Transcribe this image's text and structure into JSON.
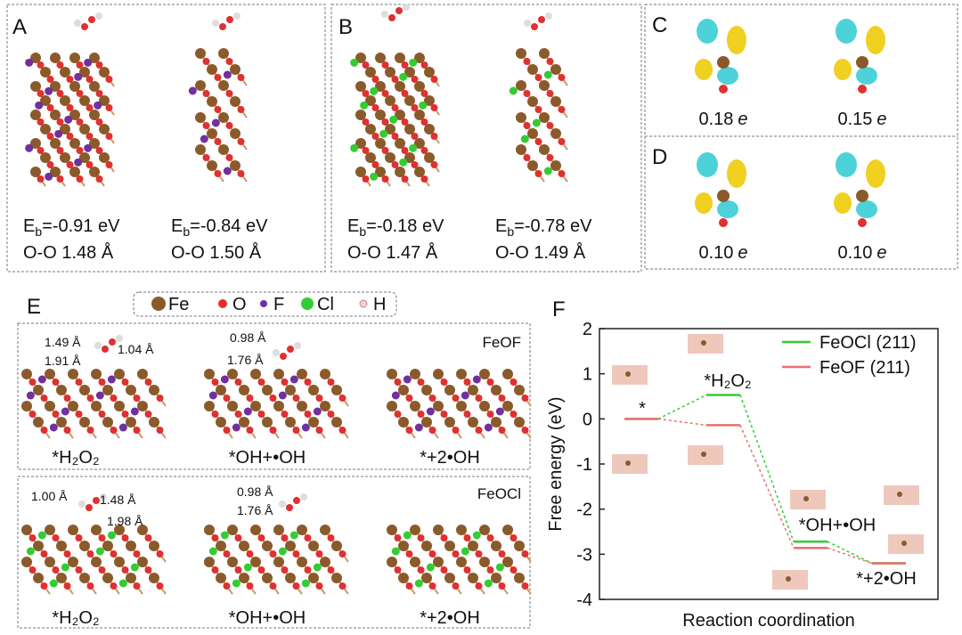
{
  "panels": {
    "A": {
      "label": "A",
      "structures": [
        {
          "energy_symbol": "E",
          "energy_subscript": "b",
          "energy_value": "=-0.91 eV",
          "bond": "O-O 1.48 Å"
        },
        {
          "energy_symbol": "E",
          "energy_subscript": "b",
          "energy_value": "=-0.84 eV",
          "bond": "O-O 1.50 Å"
        }
      ]
    },
    "B": {
      "label": "B",
      "structures": [
        {
          "energy_symbol": "E",
          "energy_subscript": "b",
          "energy_value": "=-0.18 eV",
          "bond": "O-O 1.47 Å"
        },
        {
          "energy_symbol": "E",
          "energy_subscript": "b",
          "energy_value": "=-0.78 eV",
          "bond": "O-O 1.49 Å"
        }
      ]
    },
    "C": {
      "label": "C",
      "charges": [
        {
          "value": "0.18",
          "unit": "e"
        },
        {
          "value": "0.15",
          "unit": "e"
        }
      ]
    },
    "D": {
      "label": "D",
      "charges": [
        {
          "value": "0.10",
          "unit": "e"
        },
        {
          "value": "0.10",
          "unit": "e"
        }
      ]
    },
    "E": {
      "label": "E",
      "legend": [
        "Fe",
        "O",
        "F",
        "Cl",
        "H"
      ],
      "rows": [
        {
          "material": "FeOF",
          "states": [
            "*H₂O₂",
            "*OH+•OH",
            "*+2•OH"
          ],
          "distances_h2o2": [
            "1.49 Å",
            "1.91 Å",
            "1.04 Å"
          ],
          "distances_oh": [
            "0.98 Å",
            "1.76 Å"
          ]
        },
        {
          "material": "FeOCl",
          "states": [
            "*H₂O₂",
            "*OH+•OH",
            "*+2•OH"
          ],
          "distances_h2o2": [
            "1.00 Å",
            "1.48 Å",
            "1.98 Å"
          ],
          "distances_oh": [
            "0.98 Å",
            "1.76 Å"
          ]
        }
      ]
    },
    "F": {
      "label": "F"
    }
  },
  "chart_data": {
    "type": "energy_profile",
    "xlabel": "Reaction coordination",
    "ylabel": "Free energy (eV)",
    "categories": [
      "*",
      "*H₂O₂",
      "*OH+•OH",
      "*+2•OH"
    ],
    "series": [
      {
        "name": "FeOCl (211)",
        "color": "#33cc33",
        "values": [
          0,
          0.53,
          -2.72,
          -3.2
        ]
      },
      {
        "name": "FeOF (211)",
        "color": "#e87070",
        "values": [
          0,
          -0.14,
          -2.86,
          -3.2
        ]
      }
    ],
    "ylim": [
      -4,
      2
    ],
    "yticks": [
      -4,
      -3,
      -2,
      -1,
      0,
      1,
      2
    ],
    "legend": "upper right"
  }
}
